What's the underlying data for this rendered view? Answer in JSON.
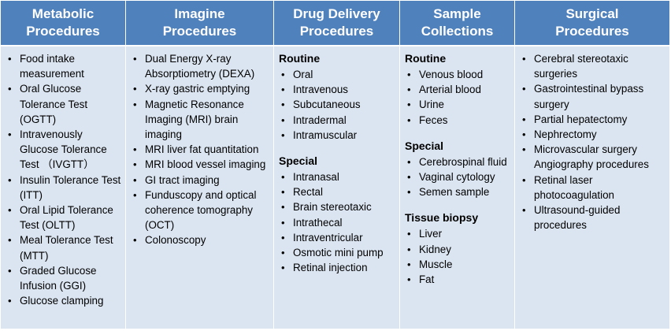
{
  "headers": {
    "metabolic": "Metabolic\nProcedures",
    "imaging": "Imagine\nProcedures",
    "drug": "Drug Delivery\nProcedures",
    "sample": "Sample\nCollections",
    "surgical": "Surgical\nProcedures"
  },
  "metabolic": {
    "items": [
      "Food intake measurement",
      "Oral Glucose Tolerance Test (OGTT)",
      "Intravenously Glucose Tolerance Test （IVGTT）",
      "Insulin Tolerance Test (ITT)",
      "Oral Lipid Tolerance Test (OLTT)",
      "Meal Tolerance Test (MTT)",
      "Graded Glucose Infusion (GGI)",
      "Glucose clamping"
    ]
  },
  "imaging": {
    "items": [
      "Dual Energy X-ray Absorptiometry (DEXA)",
      "X-ray gastric emptying",
      "Magnetic Resonance Imaging (MRI) brain imaging",
      "MRI liver fat quantitation",
      "MRI blood vessel imaging",
      "GI tract imaging",
      "Funduscopy and optical coherence tomography (OCT)",
      "Colonoscopy"
    ]
  },
  "drug": {
    "routine_title": "Routine",
    "routine": [
      "Oral",
      "Intravenous",
      "Subcutaneous",
      "Intradermal",
      "Intramuscular"
    ],
    "special_title": "Special",
    "special": [
      "Intranasal",
      "Rectal",
      "Brain stereotaxic",
      "Intrathecal",
      "Intraventricular",
      "Osmotic mini pump",
      "Retinal injection"
    ]
  },
  "sample": {
    "routine_title": "Routine",
    "routine": [
      "Venous blood",
      "Arterial blood",
      "Urine",
      "Feces"
    ],
    "special_title": "Special",
    "special": [
      "Cerebrospinal fluid",
      "Vaginal cytology",
      "Semen sample"
    ],
    "tissue_title": "Tissue biopsy",
    "tissue": [
      "Liver",
      "Kidney",
      "Muscle",
      "Fat"
    ]
  },
  "surgical": {
    "items": [
      "Cerebral stereotaxic surgeries",
      "Gastrointestinal bypass surgery",
      "Partial hepatectomy",
      "Nephrectomy",
      "Microvascular surgery Angiography procedures",
      "Retinal laser photocoagulation",
      "Ultrasound-guided procedures"
    ]
  },
  "colors": {
    "header_bg": "#4f81bd",
    "header_text": "#ffffff",
    "cell_bg": "#dbe5f1"
  }
}
